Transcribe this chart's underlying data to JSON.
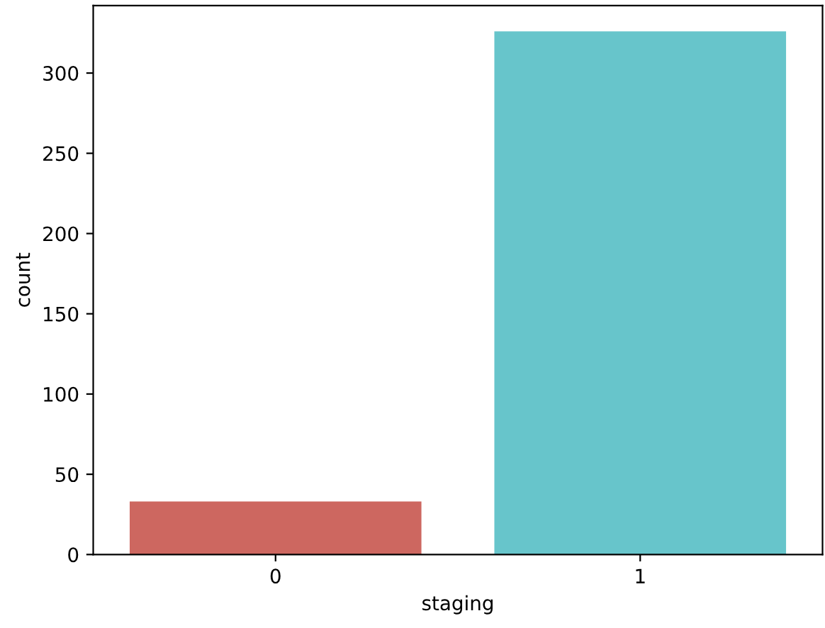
{
  "chart_data": {
    "type": "bar",
    "xlabel": "staging",
    "ylabel": "count",
    "categories": [
      "0",
      "1"
    ],
    "values": [
      33,
      326
    ],
    "colors": [
      "#cd6760",
      "#67c5cb"
    ],
    "ylim": [
      0,
      342
    ],
    "yticks": [
      0,
      50,
      100,
      150,
      200,
      250,
      300
    ],
    "grid": false
  }
}
